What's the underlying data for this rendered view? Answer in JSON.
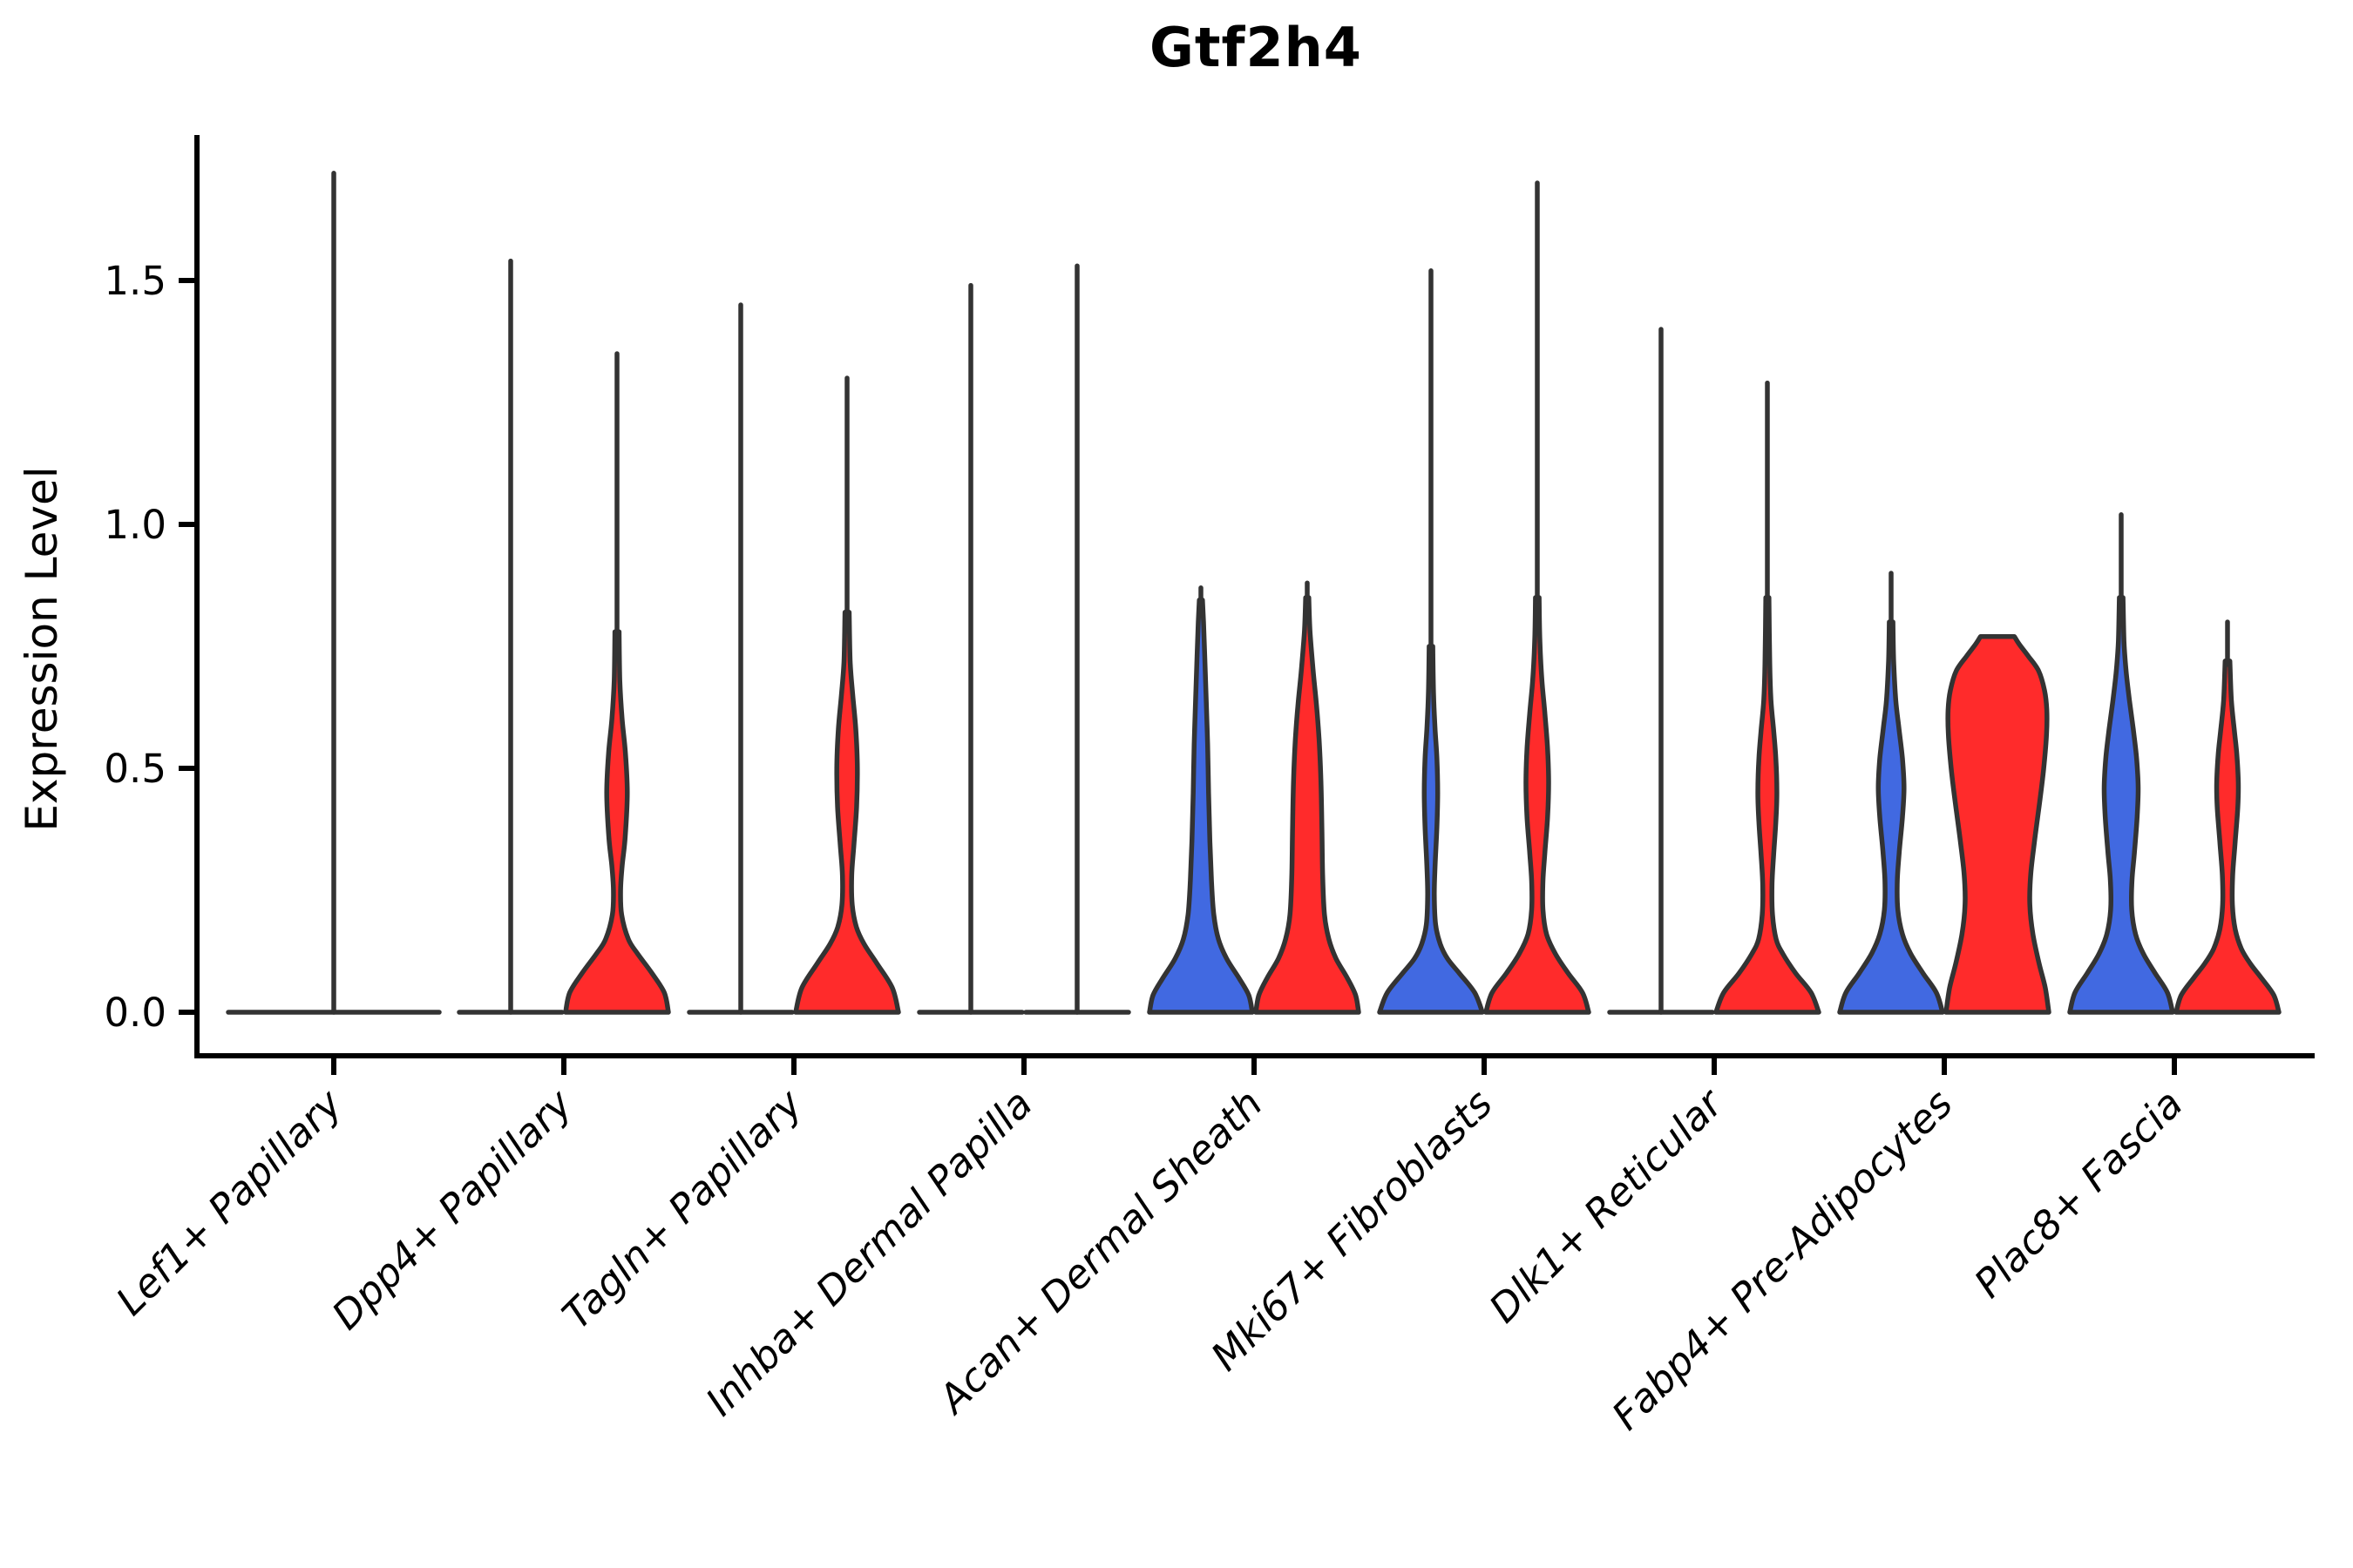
{
  "chart_data": {
    "type": "violin",
    "title": "Gtf2h4",
    "xlabel": "",
    "ylabel": "Expression Level",
    "grid": false,
    "legend": "none",
    "ylim": [
      0,
      1.8
    ],
    "yticks": [
      {
        "label": "0.0",
        "value": 0.0
      },
      {
        "label": "0.5",
        "value": 0.5
      },
      {
        "label": "1.0",
        "value": 1.0
      },
      {
        "label": "1.5",
        "value": 1.5
      }
    ],
    "categories": [
      "Lef1+ Papillary",
      "Dpp4+ Papillary",
      "Tagln+ Papillary",
      "Inhba+ Dermal Papilla",
      "Acan+ Dermal Sheath",
      "Mki67+ Fibroblasts",
      "Dlk1+ Reticular",
      "Fabp4+ Pre-Adipocytes",
      "Plac8+ Fascia"
    ],
    "colors": {
      "blue_fill": "#4169E1",
      "red_fill": "#FF2B2B",
      "outline": "#333333",
      "axis": "#000000",
      "text": "#000000"
    },
    "violins": [
      {
        "category_index": 0,
        "side": "single",
        "color_key": "none",
        "flat": true,
        "flat_top": false,
        "max": 1.72,
        "profile": []
      },
      {
        "category_index": 1,
        "side": "blue",
        "color_key": "blue_fill",
        "flat": true,
        "flat_top": false,
        "max": 1.54,
        "profile": []
      },
      {
        "category_index": 1,
        "side": "red",
        "color_key": "red_fill",
        "flat": false,
        "flat_top": false,
        "max": 1.35,
        "profile": [
          [
            0,
            1
          ],
          [
            0.04,
            0.92
          ],
          [
            0.08,
            0.68
          ],
          [
            0.12,
            0.4
          ],
          [
            0.15,
            0.22
          ],
          [
            0.2,
            0.09
          ],
          [
            0.25,
            0.07
          ],
          [
            0.3,
            0.1
          ],
          [
            0.36,
            0.16
          ],
          [
            0.45,
            0.2
          ],
          [
            0.53,
            0.165
          ],
          [
            0.6,
            0.1
          ],
          [
            0.68,
            0.055
          ],
          [
            0.78,
            0.04
          ]
        ]
      },
      {
        "category_index": 2,
        "side": "blue",
        "color_key": "blue_fill",
        "flat": true,
        "flat_top": false,
        "max": 1.45,
        "profile": []
      },
      {
        "category_index": 2,
        "side": "red",
        "color_key": "red_fill",
        "flat": false,
        "flat_top": false,
        "max": 1.3,
        "profile": [
          [
            0,
            1
          ],
          [
            0.05,
            0.88
          ],
          [
            0.1,
            0.58
          ],
          [
            0.14,
            0.33
          ],
          [
            0.175,
            0.18
          ],
          [
            0.22,
            0.1
          ],
          [
            0.28,
            0.09
          ],
          [
            0.34,
            0.13
          ],
          [
            0.42,
            0.185
          ],
          [
            0.5,
            0.2
          ],
          [
            0.58,
            0.17
          ],
          [
            0.65,
            0.11
          ],
          [
            0.72,
            0.06
          ],
          [
            0.82,
            0.04
          ]
        ]
      },
      {
        "category_index": 3,
        "side": "blue",
        "color_key": "blue_fill",
        "flat": true,
        "flat_top": false,
        "max": 1.49,
        "profile": []
      },
      {
        "category_index": 3,
        "side": "red",
        "color_key": "red_fill",
        "flat": true,
        "flat_top": false,
        "max": 1.53,
        "profile": []
      },
      {
        "category_index": 4,
        "side": "blue",
        "color_key": "blue_fill",
        "flat": false,
        "flat_top": false,
        "max": 0.87,
        "profile": [
          [
            0,
            1
          ],
          [
            0.035,
            0.93
          ],
          [
            0.07,
            0.74
          ],
          [
            0.11,
            0.5
          ],
          [
            0.15,
            0.34
          ],
          [
            0.2,
            0.25
          ],
          [
            0.27,
            0.205
          ],
          [
            0.35,
            0.175
          ],
          [
            0.45,
            0.15
          ],
          [
            0.55,
            0.13
          ],
          [
            0.65,
            0.1
          ],
          [
            0.73,
            0.075
          ],
          [
            0.8,
            0.05
          ],
          [
            0.845,
            0.03
          ]
        ]
      },
      {
        "category_index": 4,
        "side": "red",
        "color_key": "red_fill",
        "flat": false,
        "flat_top": false,
        "max": 0.88,
        "profile": [
          [
            0,
            1
          ],
          [
            0.035,
            0.94
          ],
          [
            0.07,
            0.78
          ],
          [
            0.11,
            0.56
          ],
          [
            0.15,
            0.42
          ],
          [
            0.2,
            0.335
          ],
          [
            0.28,
            0.3
          ],
          [
            0.38,
            0.285
          ],
          [
            0.48,
            0.265
          ],
          [
            0.56,
            0.23
          ],
          [
            0.63,
            0.18
          ],
          [
            0.7,
            0.115
          ],
          [
            0.78,
            0.055
          ],
          [
            0.85,
            0.03
          ]
        ]
      },
      {
        "category_index": 5,
        "side": "blue",
        "color_key": "blue_fill",
        "flat": false,
        "flat_top": false,
        "max": 1.52,
        "profile": [
          [
            0,
            1
          ],
          [
            0.04,
            0.85
          ],
          [
            0.08,
            0.55
          ],
          [
            0.11,
            0.32
          ],
          [
            0.14,
            0.18
          ],
          [
            0.18,
            0.09
          ],
          [
            0.24,
            0.065
          ],
          [
            0.3,
            0.08
          ],
          [
            0.38,
            0.115
          ],
          [
            0.45,
            0.13
          ],
          [
            0.52,
            0.115
          ],
          [
            0.58,
            0.08
          ],
          [
            0.65,
            0.05
          ],
          [
            0.75,
            0.035
          ]
        ]
      },
      {
        "category_index": 5,
        "side": "red",
        "color_key": "red_fill",
        "flat": false,
        "flat_top": false,
        "max": 1.7,
        "profile": [
          [
            0,
            1
          ],
          [
            0.04,
            0.88
          ],
          [
            0.08,
            0.6
          ],
          [
            0.12,
            0.35
          ],
          [
            0.16,
            0.18
          ],
          [
            0.21,
            0.11
          ],
          [
            0.27,
            0.11
          ],
          [
            0.33,
            0.15
          ],
          [
            0.4,
            0.2
          ],
          [
            0.47,
            0.22
          ],
          [
            0.54,
            0.2
          ],
          [
            0.61,
            0.15
          ],
          [
            0.68,
            0.09
          ],
          [
            0.76,
            0.05
          ],
          [
            0.85,
            0.035
          ]
        ]
      },
      {
        "category_index": 6,
        "side": "blue",
        "color_key": "blue_fill",
        "flat": true,
        "flat_top": false,
        "max": 1.4,
        "profile": []
      },
      {
        "category_index": 6,
        "side": "red",
        "color_key": "red_fill",
        "flat": false,
        "flat_top": false,
        "max": 1.29,
        "profile": [
          [
            0,
            1
          ],
          [
            0.04,
            0.85
          ],
          [
            0.08,
            0.55
          ],
          [
            0.12,
            0.3
          ],
          [
            0.15,
            0.17
          ],
          [
            0.2,
            0.1
          ],
          [
            0.26,
            0.09
          ],
          [
            0.32,
            0.12
          ],
          [
            0.39,
            0.165
          ],
          [
            0.45,
            0.185
          ],
          [
            0.52,
            0.165
          ],
          [
            0.58,
            0.12
          ],
          [
            0.64,
            0.07
          ],
          [
            0.72,
            0.045
          ],
          [
            0.85,
            0.03
          ]
        ]
      },
      {
        "category_index": 7,
        "side": "blue",
        "color_key": "blue_fill",
        "flat": false,
        "flat_top": false,
        "max": 0.9,
        "profile": [
          [
            0,
            1
          ],
          [
            0.04,
            0.88
          ],
          [
            0.08,
            0.62
          ],
          [
            0.12,
            0.38
          ],
          [
            0.16,
            0.22
          ],
          [
            0.21,
            0.13
          ],
          [
            0.27,
            0.12
          ],
          [
            0.33,
            0.16
          ],
          [
            0.4,
            0.22
          ],
          [
            0.46,
            0.25
          ],
          [
            0.52,
            0.22
          ],
          [
            0.58,
            0.155
          ],
          [
            0.64,
            0.09
          ],
          [
            0.72,
            0.05
          ],
          [
            0.8,
            0.035
          ]
        ]
      },
      {
        "category_index": 7,
        "side": "red",
        "color_key": "red_fill",
        "flat": false,
        "flat_top": true,
        "max": 0.77,
        "profile": [
          [
            0,
            1
          ],
          [
            0.05,
            0.93
          ],
          [
            0.1,
            0.81
          ],
          [
            0.16,
            0.69
          ],
          [
            0.22,
            0.63
          ],
          [
            0.28,
            0.645
          ],
          [
            0.35,
            0.72
          ],
          [
            0.43,
            0.82
          ],
          [
            0.5,
            0.9
          ],
          [
            0.57,
            0.955
          ],
          [
            0.62,
            0.96
          ],
          [
            0.66,
            0.915
          ],
          [
            0.7,
            0.8
          ],
          [
            0.73,
            0.6
          ],
          [
            0.755,
            0.42
          ],
          [
            0.77,
            0.33
          ]
        ]
      },
      {
        "category_index": 8,
        "side": "blue",
        "color_key": "blue_fill",
        "flat": false,
        "flat_top": false,
        "max": 1.02,
        "profile": [
          [
            0,
            1
          ],
          [
            0.04,
            0.9
          ],
          [
            0.08,
            0.66
          ],
          [
            0.12,
            0.43
          ],
          [
            0.16,
            0.28
          ],
          [
            0.21,
            0.205
          ],
          [
            0.27,
            0.21
          ],
          [
            0.33,
            0.26
          ],
          [
            0.4,
            0.31
          ],
          [
            0.46,
            0.33
          ],
          [
            0.52,
            0.3
          ],
          [
            0.58,
            0.235
          ],
          [
            0.64,
            0.16
          ],
          [
            0.7,
            0.095
          ],
          [
            0.76,
            0.055
          ],
          [
            0.85,
            0.035
          ]
        ]
      },
      {
        "category_index": 8,
        "side": "red",
        "color_key": "red_fill",
        "flat": false,
        "flat_top": false,
        "max": 0.8,
        "profile": [
          [
            0,
            1
          ],
          [
            0.035,
            0.9
          ],
          [
            0.07,
            0.66
          ],
          [
            0.1,
            0.44
          ],
          [
            0.13,
            0.27
          ],
          [
            0.17,
            0.15
          ],
          [
            0.22,
            0.095
          ],
          [
            0.28,
            0.1
          ],
          [
            0.35,
            0.15
          ],
          [
            0.42,
            0.2
          ],
          [
            0.47,
            0.21
          ],
          [
            0.53,
            0.18
          ],
          [
            0.58,
            0.13
          ],
          [
            0.64,
            0.075
          ],
          [
            0.72,
            0.045
          ]
        ]
      }
    ]
  }
}
